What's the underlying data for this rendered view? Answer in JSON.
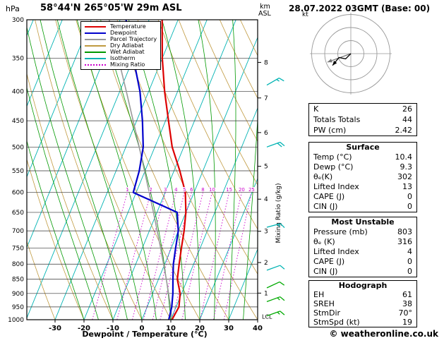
{
  "header": {
    "pressure_unit": "hPa",
    "station": "58°44'N 265°05'W 29m ASL",
    "datetime": "28.07.2022 03GMT (Base: 00)",
    "altitude_unit_line1": "km",
    "altitude_unit_line2": "ASL"
  },
  "legend": [
    {
      "label": "Temperature",
      "color": "#dd0000",
      "style": "solid"
    },
    {
      "label": "Dewpoint",
      "color": "#0000cc",
      "style": "solid"
    },
    {
      "label": "Parcel Trajectory",
      "color": "#999999",
      "style": "solid"
    },
    {
      "label": "Dry Adiabat",
      "color": "#c09a40",
      "style": "solid"
    },
    {
      "label": "Wet Adiabat",
      "color": "#009900",
      "style": "solid"
    },
    {
      "label": "Isotherm",
      "color": "#00b3b3",
      "style": "solid"
    },
    {
      "label": "Mixing Ratio",
      "color": "#cc00cc",
      "style": "dotted"
    }
  ],
  "axes": {
    "pressure_ticks": [
      300,
      350,
      400,
      450,
      500,
      550,
      600,
      650,
      700,
      750,
      800,
      850,
      900,
      950,
      1000
    ],
    "temp_ticks": [
      -30,
      -20,
      -10,
      0,
      10,
      20,
      30,
      40
    ],
    "km_ticks": [
      8,
      7,
      6,
      5,
      4,
      3,
      2,
      1
    ],
    "lcl_label": "LCL",
    "xlabel": "Dewpoint / Temperature (°C)",
    "mixing_ratio_axis_label": "Mixing Ratio (g/kg)"
  },
  "chart_data": {
    "type": "skewt_log_p",
    "pressure_range_hPa": [
      300,
      1000
    ],
    "xlim_C": [
      -38,
      40
    ],
    "isotherm_step_C": 10,
    "mixing_ratio_lines_g_kg": [
      1,
      2,
      3,
      4,
      5,
      6,
      8,
      10,
      15,
      20,
      25
    ],
    "pressure_levels_hPa": [
      1000,
      950,
      900,
      850,
      800,
      750,
      700,
      650,
      600,
      550,
      500,
      450,
      400,
      350,
      300
    ],
    "temperature_C": [
      10.4,
      11.0,
      9.5,
      6.5,
      5.0,
      3.5,
      2.0,
      0.0,
      -3.0,
      -8.0,
      -14.0,
      -19.0,
      -24.5,
      -30.0,
      -35.5
    ],
    "dewpoint_C": [
      9.3,
      8.5,
      7.0,
      5.0,
      3.0,
      1.5,
      0.0,
      -3.0,
      -21.0,
      -22.0,
      -24.0,
      -28.0,
      -33.0,
      -40.0,
      -48.0
    ],
    "parcel_C": [
      10.4,
      8.1,
      5.5,
      2.7,
      -0.4,
      -3.7,
      -7.3,
      -11.2,
      -15.5,
      -20.2,
      -25.4,
      -31.2,
      -37.7,
      -45.2,
      -53.8
    ],
    "wind_barbs": [
      {
        "pressure_hPa": 390,
        "speed_kt": 15,
        "direction_deg": 60,
        "level": "upper"
      },
      {
        "pressure_hPa": 500,
        "speed_kt": 20,
        "direction_deg": 70,
        "level": "upper"
      },
      {
        "pressure_hPa": 690,
        "speed_kt": 15,
        "direction_deg": 75,
        "level": "upper"
      },
      {
        "pressure_hPa": 820,
        "speed_kt": 10,
        "direction_deg": 70,
        "level": "upper"
      },
      {
        "pressure_hPa": 880,
        "speed_kt": 10,
        "direction_deg": 65,
        "level": "low"
      },
      {
        "pressure_hPa": 930,
        "speed_kt": 15,
        "direction_deg": 70,
        "level": "low"
      },
      {
        "pressure_hPa": 985,
        "speed_kt": 19,
        "direction_deg": 70,
        "level": "low"
      }
    ]
  },
  "hodograph": {
    "unit": "kt",
    "rings_kt": [
      10,
      20,
      30
    ],
    "trace_uv_kt": [
      [
        0,
        0
      ],
      [
        -4,
        -4
      ],
      [
        -9,
        -3
      ],
      [
        -14,
        -9
      ]
    ],
    "storm_motion_uv_kt": [
      -17.9,
      -6.5
    ]
  },
  "panels": {
    "indices": {
      "rows": [
        [
          "K",
          "26"
        ],
        [
          "Totals Totals",
          "44"
        ],
        [
          "PW (cm)",
          "2.42"
        ]
      ]
    },
    "surface": {
      "title": "Surface",
      "rows": [
        [
          "Temp (°C)",
          "10.4"
        ],
        [
          "Dewp (°C)",
          "9.3"
        ],
        [
          "θₑ(K)",
          "302"
        ],
        [
          "Lifted Index",
          "13"
        ],
        [
          "CAPE (J)",
          "0"
        ],
        [
          "CIN (J)",
          "0"
        ]
      ]
    },
    "most_unstable": {
      "title": "Most Unstable",
      "rows": [
        [
          "Pressure (mb)",
          "803"
        ],
        [
          "θₑ (K)",
          "316"
        ],
        [
          "Lifted Index",
          "4"
        ],
        [
          "CAPE (J)",
          "0"
        ],
        [
          "CIN (J)",
          "0"
        ]
      ]
    },
    "hodograph": {
      "title": "Hodograph",
      "rows": [
        [
          "EH",
          "61"
        ],
        [
          "SREH",
          "38"
        ],
        [
          "StmDir",
          "70°"
        ],
        [
          "StmSpd (kt)",
          "19"
        ]
      ]
    }
  },
  "footer": {
    "copyright": "© weatheronline.co.uk"
  },
  "colors": {
    "temperature": "#dd0000",
    "dewpoint": "#0000cc",
    "parcel": "#999999",
    "dry_adiabat": "#c09a40",
    "wet_adiabat": "#009900",
    "isotherm": "#00b3b3",
    "mixing_ratio": "#cc00cc",
    "grid": "#333333",
    "barb_upper": "#00b3b3",
    "barb_lower": "#00aa00",
    "hodo_ring": "#999999",
    "hodo_storm": "#777777"
  }
}
